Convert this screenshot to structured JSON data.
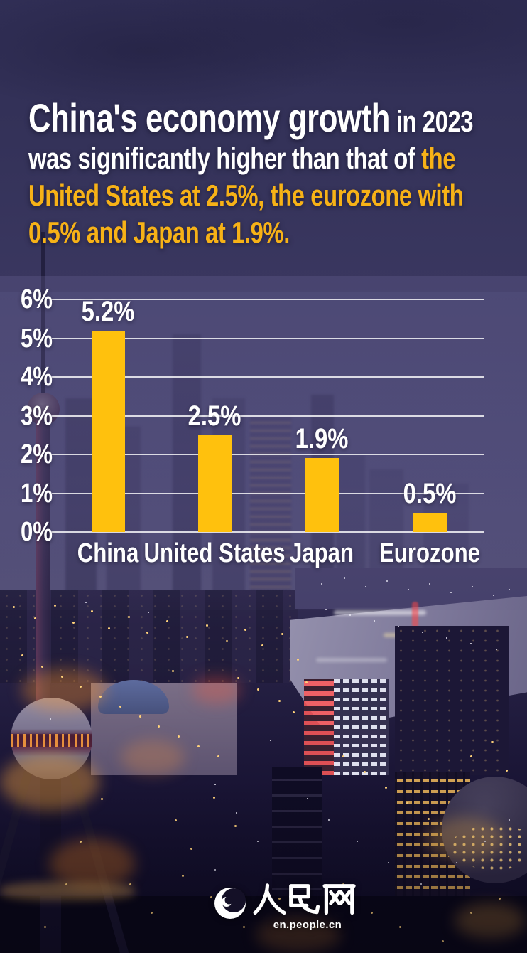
{
  "headline": {
    "line1_main": "China's economy growth",
    "line1_suffix": " in 2023",
    "line2_white": "was significantly higher than that of ",
    "line2_yellow": "the",
    "line3_yellow": "United States at 2.5%, the eurozone with",
    "line4_yellow": "0.5% and Japan at 1.9%."
  },
  "chart_data": {
    "type": "bar",
    "categories": [
      "China",
      "United States",
      "Japan",
      "Eurozone"
    ],
    "values": [
      5.2,
      2.5,
      1.9,
      0.5
    ],
    "value_labels": [
      "5.2%",
      "2.5%",
      "1.9%",
      "0.5%"
    ],
    "y_ticks": [
      "6%",
      "5%",
      "4%",
      "3%",
      "2%",
      "1%",
      "0%"
    ],
    "ylim": [
      0,
      6
    ],
    "ylabel": "",
    "xlabel": "",
    "title": "",
    "grid": "horizontal gridlines on",
    "legend": "none",
    "bar_color": "#FFC10D",
    "label_color": "#FFFFFF"
  },
  "footer": {
    "logo_text": "人民网",
    "logo_domain": "en.people.cn",
    "logo_icon": "crescent-swirl-icon"
  },
  "colors": {
    "accent_yellow": "#F7B217",
    "bar_yellow": "#FFC10D",
    "gridline": "rgba(255,255,255,0.8)",
    "sky_navy": "#34325A"
  }
}
